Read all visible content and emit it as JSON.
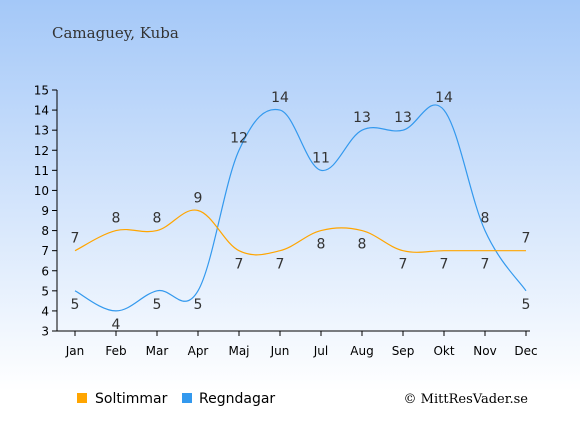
{
  "chart_data": {
    "type": "line",
    "title": "Camaguey, Kuba",
    "categories": [
      "Jan",
      "Feb",
      "Mar",
      "Apr",
      "Maj",
      "Jun",
      "Jul",
      "Aug",
      "Sep",
      "Okt",
      "Nov",
      "Dec"
    ],
    "ylim": [
      3,
      15
    ],
    "yticks": [
      3,
      4,
      5,
      6,
      7,
      8,
      9,
      10,
      11,
      12,
      13,
      14,
      15
    ],
    "series": [
      {
        "name": "Soltimmar",
        "color": "#FFA500",
        "values": [
          7,
          8,
          8,
          9,
          7,
          7,
          8,
          8,
          7,
          7,
          7,
          7
        ]
      },
      {
        "name": "Regndagar",
        "color": "#3399EE",
        "values": [
          5,
          4,
          5,
          5,
          12,
          14,
          11,
          13,
          13,
          14,
          8,
          5
        ]
      }
    ],
    "legend_position": "bottom-left",
    "grid": false,
    "credit": "© MittResVader.se"
  },
  "colors": {
    "background_top": "#A4C8F8",
    "background_bottom": "#FFFFFF",
    "axis": "#000000",
    "text": "#333333"
  }
}
